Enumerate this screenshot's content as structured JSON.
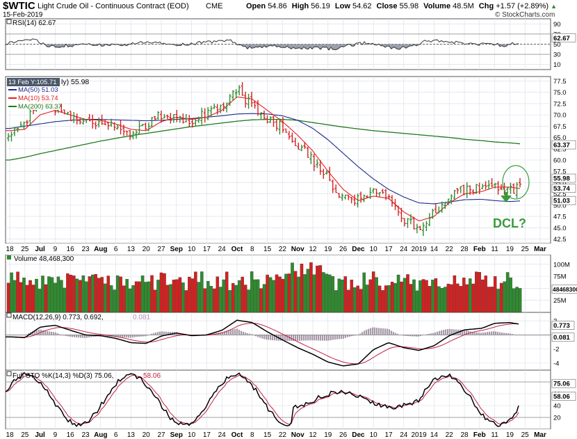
{
  "header": {
    "ticker": "$WTIC",
    "name": "Light Crude Oil - Continuous Contract (EOD)",
    "exchange": "CME",
    "date": "15-Feb-2019",
    "open_label": "Open",
    "open": "54.86",
    "high_label": "High",
    "high": "56.19",
    "low_label": "Low",
    "low": "54.62",
    "close_label": "Close",
    "close": "55.98",
    "volume_label": "Volume",
    "volume": "48.5M",
    "chg_label": "Chg",
    "chg": "+1.57 (+2.89%)",
    "chg_arrow": "▲",
    "brand": "© StockCharts.com"
  },
  "rsi": {
    "legend": "RSI(14) 62.67",
    "ticks": [
      "90",
      "70",
      "50",
      "30",
      "10"
    ],
    "value_tag": "62.67"
  },
  "price": {
    "tooltip": "13 Feb Y:105.71",
    "legend_main": "ly) 55.98",
    "ma50": "MA(50) 51.03",
    "ma10": "MA(10) 53.74",
    "ma200": "MA(200) 63.37",
    "ticks": [
      "77.5",
      "75.0",
      "72.5",
      "70.0",
      "67.5",
      "65.0",
      "62.5",
      "60.0",
      "57.5",
      "55.0",
      "52.5",
      "50.0",
      "47.5",
      "45.0",
      "42.5"
    ],
    "tags": {
      "close": "55.98",
      "ma10": "53.74",
      "ma50": "51.03",
      "ma200": "63.37"
    },
    "annotation": "DCL?"
  },
  "xaxis": {
    "labels": [
      "18",
      "25",
      "Jul",
      "9",
      "16",
      "23",
      "Aug",
      "6",
      "13",
      "20",
      "27",
      "Sep",
      "10",
      "17",
      "24",
      "Oct",
      "8",
      "15",
      "22",
      "Nov",
      "12",
      "19",
      "26",
      "Dec",
      "10",
      "17",
      "24",
      "2019",
      "14",
      "22",
      "28",
      "Feb",
      "11",
      "19",
      "25",
      "Mar"
    ]
  },
  "volume": {
    "legend": "Volume 48,468,300",
    "ticks": [
      "100M",
      "75M",
      "50M",
      "25M"
    ],
    "value_tag": "48468300"
  },
  "macd": {
    "legend_prefix": "MACD(12,26,9) 0.773, 0.692,",
    "legend_hist": "0.081",
    "ticks": [
      "2",
      "0",
      "-2",
      "-4"
    ],
    "tags": [
      "0.773",
      "0.081"
    ]
  },
  "sto": {
    "legend_prefix": "Full STO %K(14,3) %D(3) 75.06,",
    "legend_d": "58.06",
    "ticks": [
      "80",
      "60",
      "40",
      "20"
    ],
    "tags": [
      "75.06",
      "58.06"
    ]
  },
  "colors": {
    "up": "#2e8b2e",
    "down": "#d42020",
    "ma50": "#1c2a8c",
    "ma10": "#e02020",
    "ma200": "#1d7a1d",
    "annotation": "#3a9a3a",
    "grid": "#d6dbe6"
  },
  "chart_data": {
    "type": "line",
    "title": "Light Crude Oil - Continuous Contract (EOD)",
    "x": [
      "2018-06-18",
      "2018-06-25",
      "2018-07-02",
      "2018-07-09",
      "2018-07-16",
      "2018-07-23",
      "2018-07-30",
      "2018-08-06",
      "2018-08-13",
      "2018-08-20",
      "2018-08-27",
      "2018-09-03",
      "2018-09-10",
      "2018-09-17",
      "2018-09-24",
      "2018-10-01",
      "2018-10-08",
      "2018-10-15",
      "2018-10-22",
      "2018-10-29",
      "2018-11-05",
      "2018-11-12",
      "2018-11-19",
      "2018-11-26",
      "2018-12-03",
      "2018-12-10",
      "2018-12-17",
      "2018-12-24",
      "2018-12-31",
      "2019-01-07",
      "2019-01-14",
      "2019-01-22",
      "2019-01-28",
      "2019-02-04",
      "2019-02-11",
      "2019-02-15"
    ],
    "series": [
      {
        "name": "$WTIC",
        "values": [
          65.0,
          68.5,
          73.8,
          71.0,
          69.5,
          68.8,
          68.5,
          67.5,
          65.8,
          67.8,
          70.0,
          69.5,
          69.0,
          70.5,
          72.5,
          75.5,
          72.0,
          69.0,
          67.5,
          63.5,
          60.0,
          56.0,
          51.5,
          51.0,
          52.5,
          51.5,
          46.5,
          45.0,
          48.5,
          52.0,
          53.5,
          53.5,
          54.5,
          53.0,
          54.5,
          55.98
        ]
      },
      {
        "name": "MA(10)",
        "values": [
          66.5,
          66.8,
          70.0,
          71.0,
          70.0,
          69.0,
          68.8,
          68.0,
          66.8,
          66.5,
          68.5,
          69.5,
          69.0,
          69.5,
          71.0,
          74.0,
          73.5,
          71.0,
          68.5,
          65.5,
          62.0,
          57.5,
          53.5,
          51.0,
          52.0,
          51.5,
          48.5,
          46.5,
          47.5,
          50.5,
          52.5,
          53.0,
          54.0,
          54.0,
          53.5,
          53.74
        ]
      },
      {
        "name": "MA(50)",
        "values": [
          67.0,
          67.5,
          68.0,
          68.5,
          68.8,
          69.0,
          69.0,
          68.9,
          68.8,
          68.7,
          68.8,
          69.0,
          69.2,
          69.5,
          69.8,
          70.2,
          70.3,
          70.2,
          69.8,
          68.8,
          67.0,
          64.5,
          61.5,
          58.5,
          55.8,
          53.5,
          51.8,
          50.5,
          50.3,
          50.7,
          51.2,
          51.3,
          51.0,
          50.8,
          51.0,
          51.03
        ]
      },
      {
        "name": "MA(200)",
        "values": [
          60.0,
          60.6,
          61.4,
          62.1,
          62.8,
          63.5,
          64.2,
          64.8,
          65.4,
          65.9,
          66.4,
          66.9,
          67.4,
          67.8,
          68.2,
          68.6,
          68.9,
          69.0,
          69.0,
          68.8,
          68.3,
          67.8,
          67.3,
          66.9,
          66.5,
          66.2,
          65.9,
          65.6,
          65.3,
          65.0,
          64.6,
          64.3,
          64.0,
          63.8,
          63.5,
          63.37
        ]
      }
    ],
    "xlabel": "",
    "ylabel": "",
    "ylim": [
      41.5,
      78.5
    ],
    "last": {
      "open": 54.86,
      "high": 56.19,
      "low": 54.62,
      "close": 55.98,
      "volume": 48468300
    },
    "indicators": {
      "rsi14": 62.67,
      "macd": 0.773,
      "macd_signal": 0.692,
      "macd_hist": 0.081,
      "sto_k": 75.06,
      "sto_d": 58.06
    }
  }
}
